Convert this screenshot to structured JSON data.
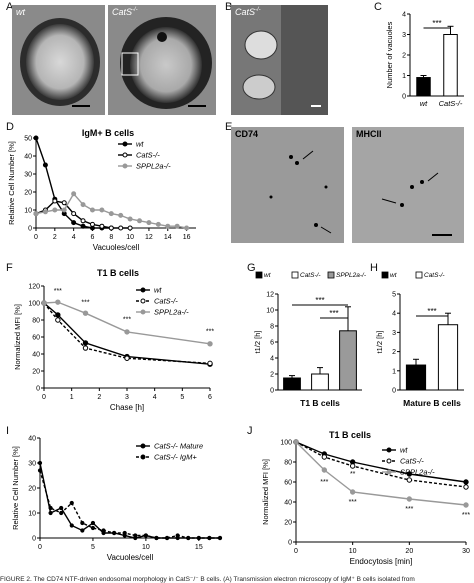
{
  "panel_letters": [
    "A",
    "B",
    "C",
    "D",
    "E",
    "F",
    "G",
    "H",
    "I",
    "J"
  ],
  "micrographs": {
    "a_left": "wt",
    "a_right": "CatS",
    "a_right_sup": "-/-",
    "b": "CatS",
    "b_sup": "-/-",
    "e_left": "CD74",
    "e_right": "MHCII"
  },
  "caption": "FIGURE 2.  The CD74 NTF-driven endosomal morphology in CatS⁻/⁻ B cells. (A) Transmission electron microscopy of IgM⁺ B cells isolated from",
  "chart_data": [
    {
      "id": "C",
      "type": "bar",
      "categories": [
        "wt",
        "CatS-/-"
      ],
      "values": [
        0.9,
        3.0
      ],
      "errors": [
        0.1,
        0.4
      ],
      "fills": [
        "#000000",
        "#ffffff"
      ],
      "ylabel": "Number of vacuoles",
      "ylim": [
        0,
        4
      ],
      "yticks": [
        "0",
        "1",
        "2",
        "3",
        "4"
      ],
      "significance": "***"
    },
    {
      "id": "D",
      "type": "line",
      "title": "IgM+ B cells",
      "xlabel": "Vacuoles/cell",
      "ylabel": "Relative Cell Number [%]",
      "ylim": [
        0,
        50
      ],
      "xlim": [
        0,
        17
      ],
      "yticks": [
        "0",
        "10",
        "20",
        "30",
        "40",
        "50"
      ],
      "xticks": [
        "0",
        "2",
        "4",
        "6",
        "8",
        "10",
        "12",
        "14",
        "16"
      ],
      "series": [
        {
          "name": "wt",
          "color": "#000000",
          "x": [
            0,
            1,
            2,
            3,
            4,
            5,
            6,
            7,
            8
          ],
          "y": [
            50,
            35,
            16,
            8,
            3,
            1,
            0,
            0,
            0
          ]
        },
        {
          "name": "CatS-/-",
          "color": "#000000",
          "x": [
            0,
            1,
            2,
            3,
            4,
            5,
            6,
            7,
            8,
            9,
            10
          ],
          "y": [
            8,
            10,
            15,
            14,
            8,
            4,
            2,
            1,
            0,
            0,
            0
          ]
        },
        {
          "name": "SPPL2a-/-",
          "color": "#999999",
          "x": [
            0,
            1,
            2,
            3,
            4,
            5,
            6,
            7,
            8,
            9,
            10,
            11,
            12,
            13,
            14,
            15,
            16
          ],
          "y": [
            8,
            9,
            10,
            10,
            19,
            13,
            10,
            10,
            8,
            7,
            5,
            4,
            3,
            2,
            1,
            1,
            0
          ]
        }
      ]
    },
    {
      "id": "F",
      "type": "line",
      "title": "T1 B cells",
      "xlabel": "Chase [h]",
      "ylabel": "Normalized MFI [%]",
      "ylim": [
        0,
        120
      ],
      "xlim": [
        0,
        6
      ],
      "yticks": [
        "0",
        "20",
        "40",
        "60",
        "80",
        "100",
        "120"
      ],
      "xticks": [
        "0",
        "1",
        "2",
        "3",
        "4",
        "5",
        "6"
      ],
      "annotations": [
        "***",
        "***",
        "***",
        "***"
      ],
      "series": [
        {
          "name": "wt",
          "color": "#000000",
          "x": [
            0,
            0.5,
            1.5,
            3,
            6
          ],
          "y": [
            100,
            86,
            53,
            37,
            28
          ]
        },
        {
          "name": "CatS-/-",
          "color": "#000000",
          "x": [
            0,
            0.5,
            1.5,
            3,
            6
          ],
          "y": [
            100,
            80,
            47,
            35,
            29
          ]
        },
        {
          "name": "SPPL2a-/-",
          "color": "#999999",
          "x": [
            0,
            0.5,
            1.5,
            3,
            6
          ],
          "y": [
            100,
            101,
            88,
            66,
            52
          ]
        }
      ]
    },
    {
      "id": "G",
      "type": "bar",
      "title": "T1 B cells",
      "legend": [
        "wt",
        "CatS-/-",
        "SPPL2a-/-"
      ],
      "categories": [
        "wt",
        "CatS-/-",
        "SPPL2a-/-"
      ],
      "values": [
        1.5,
        2.0,
        7.4
      ],
      "errors": [
        0.3,
        0.8,
        3.0
      ],
      "fills": [
        "#000000",
        "#ffffff",
        "#9a9a9a"
      ],
      "ylabel": "t1/2 [h]",
      "ylim": [
        0,
        12
      ],
      "yticks": [
        "0",
        "2",
        "4",
        "6",
        "8",
        "10",
        "12"
      ],
      "significance": [
        "***",
        "***"
      ]
    },
    {
      "id": "H",
      "type": "bar",
      "title": "Mature B cells",
      "legend": [
        "wt",
        "CatS-/-"
      ],
      "categories": [
        "wt",
        "CatS-/-"
      ],
      "values": [
        1.3,
        3.4
      ],
      "errors": [
        0.3,
        0.6
      ],
      "fills": [
        "#000000",
        "#ffffff"
      ],
      "ylabel": "t1/2 [h]",
      "ylim": [
        0,
        5
      ],
      "yticks": [
        "0",
        "1",
        "2",
        "3",
        "4",
        "5"
      ],
      "significance": "***"
    },
    {
      "id": "I",
      "type": "line",
      "xlabel": "Vacuoles/cell",
      "ylabel": "Relative Cell Number [%]",
      "ylim": [
        0,
        40
      ],
      "xlim": [
        0,
        17
      ],
      "yticks": [
        "0",
        "10",
        "20",
        "30",
        "40"
      ],
      "xticks": [
        "0",
        "5",
        "10",
        "15"
      ],
      "series": [
        {
          "name": "CatS-/- Mature",
          "color": "#000000",
          "x": [
            0,
            1,
            2,
            3,
            4,
            5,
            6,
            7,
            8,
            9,
            10,
            11,
            12,
            13,
            14,
            15,
            16,
            17
          ],
          "y": [
            30,
            10,
            12,
            5,
            3,
            6,
            2,
            2,
            1,
            0,
            1,
            0,
            0,
            0,
            0,
            0,
            0,
            0
          ]
        },
        {
          "name": "CatS-/- IgM+",
          "color": "#000000",
          "x": [
            0,
            1,
            2,
            3,
            4,
            5,
            6,
            7,
            8,
            9,
            10,
            11,
            12,
            13,
            14,
            15,
            16,
            17
          ],
          "y": [
            27,
            12,
            10,
            14,
            6,
            4,
            3,
            2,
            2,
            1,
            1,
            0,
            0,
            1,
            0,
            0,
            0,
            0
          ]
        }
      ]
    },
    {
      "id": "J",
      "type": "line",
      "title": "T1 B cells",
      "xlabel": "Endocytosis [min]",
      "ylabel": "Normalized MFI [%]",
      "ylim": [
        0,
        100
      ],
      "xlim": [
        0,
        30
      ],
      "yticks": [
        "0",
        "20",
        "40",
        "60",
        "80",
        "100"
      ],
      "xticks": [
        "0",
        "10",
        "20",
        "30"
      ],
      "annotations": [
        "***",
        "***",
        "***",
        "***",
        "**"
      ],
      "series": [
        {
          "name": "wt",
          "color": "#000000",
          "x": [
            0,
            5,
            10,
            20,
            30
          ],
          "y": [
            100,
            88,
            80,
            68,
            60
          ]
        },
        {
          "name": "CatS-/-",
          "color": "#000000",
          "x": [
            0,
            5,
            10,
            20,
            30
          ],
          "y": [
            100,
            85,
            76,
            62,
            55
          ]
        },
        {
          "name": "SPPL2a-/-",
          "color": "#999999",
          "x": [
            0,
            5,
            10,
            20,
            30
          ],
          "y": [
            100,
            72,
            50,
            43,
            37
          ]
        }
      ]
    }
  ]
}
